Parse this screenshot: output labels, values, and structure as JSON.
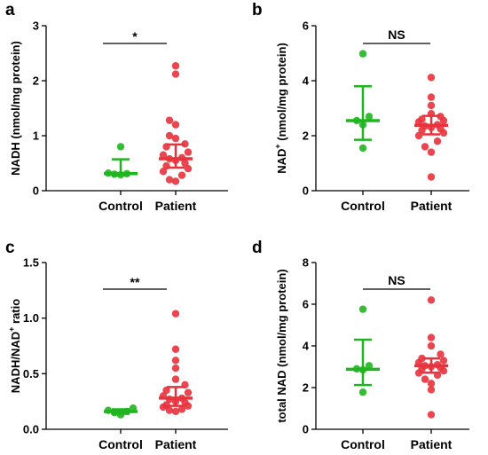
{
  "chart_data": [
    {
      "panel": "a",
      "type": "scatter",
      "categories": [
        "Control",
        "Patient"
      ],
      "ylabel": "NADH (nmol/mg protein)",
      "ylabel_parts": [
        "NADH (nmol/mg protein)"
      ],
      "ylim": [
        0,
        3
      ],
      "yticks": [
        0,
        1,
        2,
        3
      ],
      "colors": [
        "#1fb51f",
        "#e8323c"
      ],
      "significance": "*",
      "series": [
        {
          "category": "Control",
          "values": [
            0.29,
            0.3,
            0.31,
            0.32,
            0.8
          ],
          "center": 0.31,
          "err_low": 0.28,
          "err_high": 0.57
        },
        {
          "category": "Patient",
          "values": [
            2.27,
            2.12,
            1.28,
            1.2,
            1.0,
            0.95,
            0.85,
            0.8,
            0.7,
            0.65,
            0.6,
            0.58,
            0.55,
            0.5,
            0.45,
            0.4,
            0.35,
            0.28,
            0.2,
            0.17
          ],
          "center": 0.58,
          "err_low": 0.42,
          "err_high": 0.84
        }
      ]
    },
    {
      "panel": "b",
      "type": "scatter",
      "categories": [
        "Control",
        "Patient"
      ],
      "ylabel": "NAD+ (nmol/mg protein)",
      "ylabel_parts": [
        "NAD",
        "+",
        " (nmol/mg protein)"
      ],
      "ylim": [
        0,
        6
      ],
      "yticks": [
        0,
        2,
        4,
        6
      ],
      "colors": [
        "#1fb51f",
        "#e8323c"
      ],
      "significance": "NS",
      "series": [
        {
          "category": "Control",
          "values": [
            4.98,
            2.7,
            2.55,
            2.4,
            1.55
          ],
          "center": 2.55,
          "err_low": 1.85,
          "err_high": 3.8
        },
        {
          "category": "Patient",
          "values": [
            4.12,
            3.4,
            3.1,
            2.8,
            2.7,
            2.6,
            2.55,
            2.5,
            2.4,
            2.35,
            2.3,
            2.25,
            2.2,
            2.1,
            2.0,
            1.8,
            1.6,
            1.4,
            0.5
          ],
          "center": 2.38,
          "err_low": 2.05,
          "err_high": 2.72
        }
      ]
    },
    {
      "panel": "c",
      "type": "scatter",
      "categories": [
        "Control",
        "Patient"
      ],
      "ylabel": "NADH/NAD+ ratio",
      "ylabel_parts": [
        "NADH/NAD",
        "+",
        " ratio"
      ],
      "ylim": [
        0,
        1.5
      ],
      "yticks": [
        0.0,
        0.5,
        1.0,
        1.5
      ],
      "ytick_labels": [
        "0.0",
        "0.5",
        "1.0",
        "1.5"
      ],
      "colors": [
        "#1fb51f",
        "#e8323c"
      ],
      "significance": "**",
      "series": [
        {
          "category": "Control",
          "values": [
            0.19,
            0.17,
            0.16,
            0.15,
            0.13
          ],
          "center": 0.16,
          "err_low": 0.14,
          "err_high": 0.18
        },
        {
          "category": "Patient",
          "values": [
            1.04,
            0.72,
            0.62,
            0.55,
            0.45,
            0.4,
            0.35,
            0.33,
            0.3,
            0.28,
            0.27,
            0.25,
            0.24,
            0.22,
            0.21,
            0.2,
            0.18,
            0.17,
            0.16
          ],
          "center": 0.28,
          "err_low": 0.21,
          "err_high": 0.38
        }
      ]
    },
    {
      "panel": "d",
      "type": "scatter",
      "categories": [
        "Control",
        "Patient"
      ],
      "ylabel": "total NAD (nmol/mg protein)",
      "ylabel_parts": [
        "total NAD (nmol/mg protein)"
      ],
      "ylim": [
        0,
        8
      ],
      "yticks": [
        0,
        2,
        4,
        6,
        8
      ],
      "colors": [
        "#1fb51f",
        "#e8323c"
      ],
      "significance": "NS",
      "series": [
        {
          "category": "Control",
          "values": [
            5.76,
            3.05,
            2.9,
            2.85,
            1.78
          ],
          "center": 2.88,
          "err_low": 2.12,
          "err_high": 4.3
        },
        {
          "category": "Patient",
          "values": [
            6.2,
            4.4,
            4.0,
            3.6,
            3.4,
            3.3,
            3.2,
            3.1,
            3.05,
            3.0,
            2.95,
            2.9,
            2.8,
            2.7,
            2.6,
            2.4,
            2.2,
            1.9,
            0.7
          ],
          "center": 3.05,
          "err_low": 2.72,
          "err_high": 3.4
        }
      ]
    }
  ]
}
